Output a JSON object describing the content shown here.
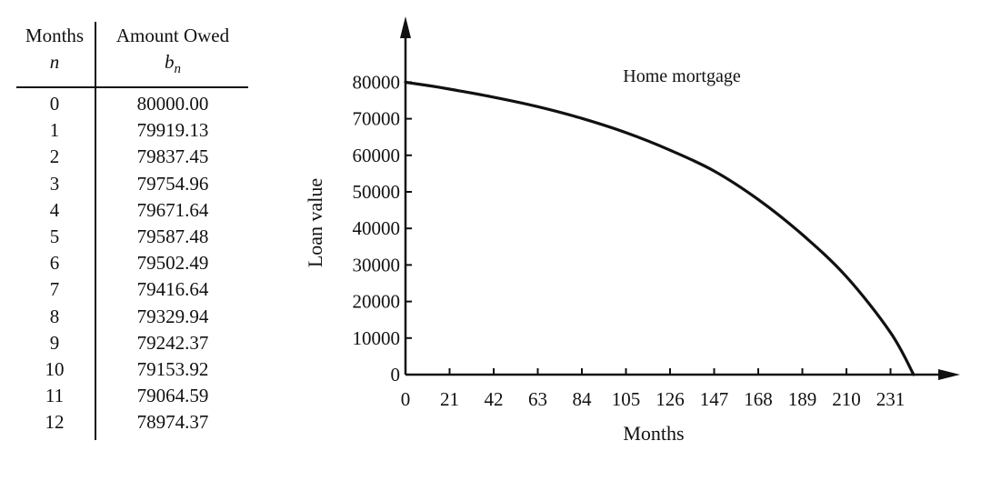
{
  "table": {
    "headers": {
      "col1": "Months",
      "col1_symbol": "n",
      "col2": "Amount Owed",
      "col2_symbol": "b",
      "col2_symbol_sub": "n"
    },
    "rows": [
      {
        "n": "0",
        "b": "80000.00"
      },
      {
        "n": "1",
        "b": "79919.13"
      },
      {
        "n": "2",
        "b": "79837.45"
      },
      {
        "n": "3",
        "b": "79754.96"
      },
      {
        "n": "4",
        "b": "79671.64"
      },
      {
        "n": "5",
        "b": "79587.48"
      },
      {
        "n": "6",
        "b": "79502.49"
      },
      {
        "n": "7",
        "b": "79416.64"
      },
      {
        "n": "8",
        "b": "79329.94"
      },
      {
        "n": "9",
        "b": "79242.37"
      },
      {
        "n": "10",
        "b": "79153.92"
      },
      {
        "n": "11",
        "b": "79064.59"
      },
      {
        "n": "12",
        "b": "78974.37"
      }
    ]
  },
  "chart_data": {
    "type": "line",
    "title": "Home mortgage",
    "xlabel": "Months",
    "ylabel": "Loan value",
    "xlim": [
      0,
      252
    ],
    "ylim": [
      0,
      80000
    ],
    "xticks": [
      0,
      21,
      42,
      63,
      84,
      105,
      126,
      147,
      168,
      189,
      210,
      231
    ],
    "yticks": [
      0,
      10000,
      20000,
      30000,
      40000,
      50000,
      60000,
      70000,
      80000
    ],
    "grid": false,
    "series": [
      {
        "x": [
          0,
          12,
          21,
          42,
          63,
          84,
          105,
          126,
          147,
          168,
          189,
          210,
          231,
          242
        ],
        "values": [
          80000,
          78974,
          78100,
          75900,
          73300,
          70100,
          66200,
          61400,
          55700,
          47900,
          38300,
          26800,
          11500,
          0
        ]
      }
    ]
  }
}
